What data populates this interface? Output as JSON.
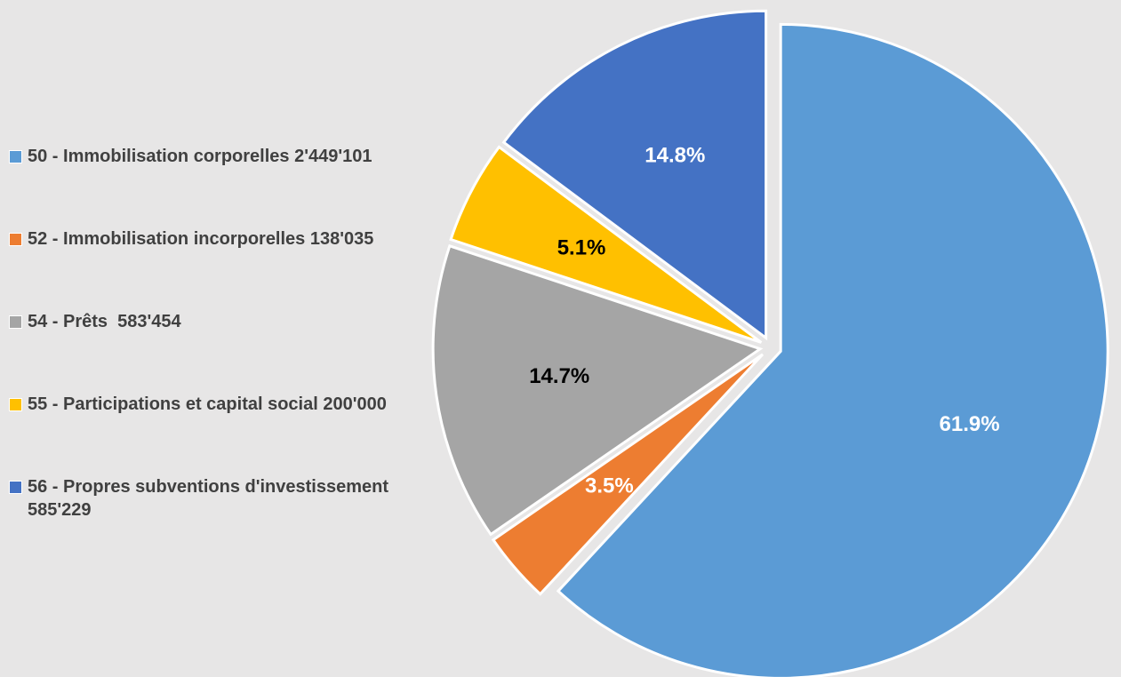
{
  "chart_data": {
    "type": "pie",
    "categories": [
      "50 - Immobilisation corporelles 2'449'101",
      "52 - Immobilisation incorporelles 138'035",
      "54 - Prêts  583'454",
      "55 - Participations et capital social 200'000",
      "56 - Propres subventions d'investissement  585'229"
    ],
    "values": [
      61.9,
      3.5,
      14.7,
      5.1,
      14.8
    ],
    "value_labels": [
      "61.9%",
      "3.5%",
      "14.7%",
      "5.1%",
      "14.8%"
    ],
    "colors": [
      "#5b9bd5",
      "#ed7d31",
      "#a5a5a5",
      "#ffc000",
      "#4472c4"
    ],
    "legend": "left"
  }
}
